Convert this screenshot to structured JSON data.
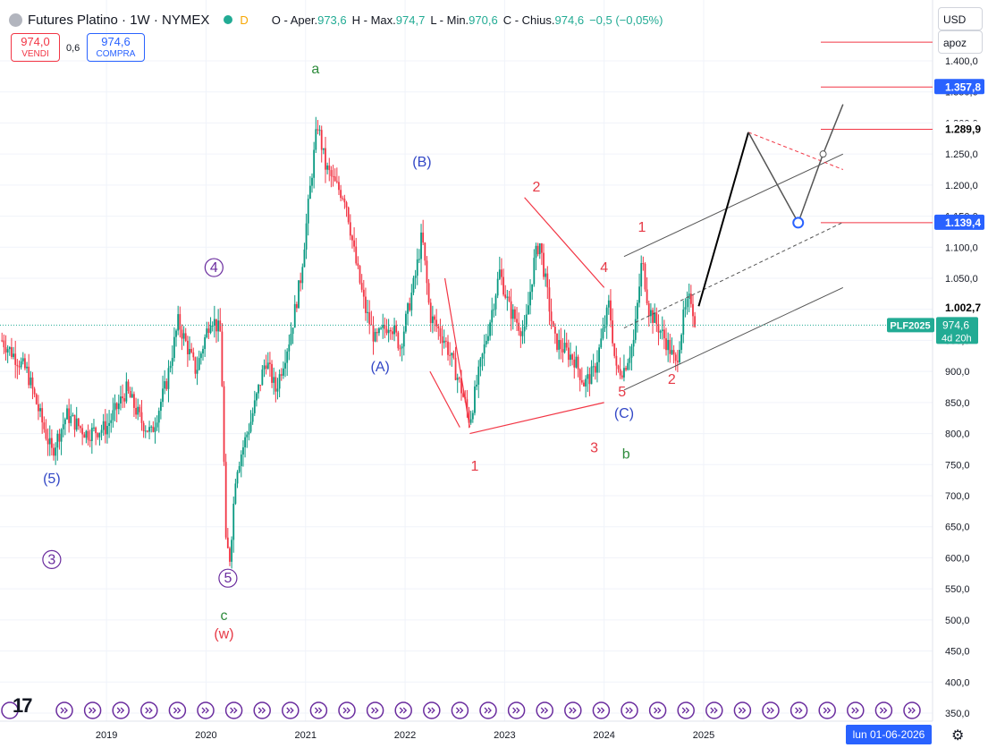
{
  "header": {
    "title": "Futures Platino · 1W · NYMEX",
    "delay_badge": "D",
    "open_label": "O - Aper.",
    "open_value": "973,6",
    "high_label": "H - Max.",
    "high_value": "974,7",
    "low_label": "L - Min.",
    "low_value": "970,6",
    "close_label": "C - Chius.",
    "close_value": "974,6",
    "change_value": "−0,5 (−0,05%)"
  },
  "trade": {
    "sell_price": "974,0",
    "sell_label": "VENDI",
    "spread": "0,6",
    "buy_price": "974,6",
    "buy_label": "COMPRA"
  },
  "controls": {
    "currency": "USD",
    "scale": "apoz"
  },
  "footer": {
    "date_badge": "lun 01-06-2026",
    "logo": "17"
  },
  "chart_data": {
    "type": "candlestick",
    "symbol_tag": "PLF2025",
    "last_price_label": "974,6",
    "countdown": "4d 20h",
    "colors": {
      "up": "#089981",
      "down": "#f23645",
      "wave_red": "#e63946",
      "wave_blue": "#3247c6",
      "wave_green": "#2e8b3c",
      "wave_purple": "#6a2c9e",
      "line_black": "#131722",
      "price_tag_blue": "#2962ff",
      "price_tag_green": "#22ab94"
    },
    "x_axis": {
      "ticks": [
        "2019",
        "2020",
        "2021",
        "2022",
        "2023",
        "2024",
        "2025"
      ],
      "x_positions": [
        2019,
        2020,
        2021,
        2022,
        2023,
        2024,
        2025
      ]
    },
    "y_axis": {
      "range": [
        340,
        1440
      ],
      "ticks": [
        350,
        400,
        450,
        500,
        550,
        600,
        650,
        700,
        750,
        800,
        850,
        900,
        950,
        1000,
        1050,
        1100,
        1150,
        1200,
        1250,
        1300,
        1350,
        1400
      ],
      "tick_labels": [
        "350,0",
        "400,0",
        "450,0",
        "500,0",
        "550,0",
        "600,0",
        "650,0",
        "700,0",
        "750,0",
        "800,0",
        "850,0",
        "900,0",
        "950,0",
        "1.000,0",
        "1.050,0",
        "1.100,0",
        "1.150,0",
        "1.200,0",
        "1.250,0",
        "1.300,0",
        "1.350,0",
        "1.400,0"
      ]
    },
    "price_anchors": [
      {
        "t": 2017.95,
        "p": 950
      },
      {
        "t": 2018.2,
        "p": 900
      },
      {
        "t": 2018.35,
        "p": 820
      },
      {
        "t": 2018.45,
        "p": 770
      },
      {
        "t": 2018.6,
        "p": 830
      },
      {
        "t": 2018.8,
        "p": 800
      },
      {
        "t": 2019.0,
        "p": 810
      },
      {
        "t": 2019.2,
        "p": 870
      },
      {
        "t": 2019.35,
        "p": 820
      },
      {
        "t": 2019.45,
        "p": 800
      },
      {
        "t": 2019.6,
        "p": 880
      },
      {
        "t": 2019.72,
        "p": 980
      },
      {
        "t": 2019.9,
        "p": 900
      },
      {
        "t": 2020.05,
        "p": 990
      },
      {
        "t": 2020.15,
        "p": 960
      },
      {
        "t": 2020.2,
        "p": 620
      },
      {
        "t": 2020.24,
        "p": 600
      },
      {
        "t": 2020.3,
        "p": 740
      },
      {
        "t": 2020.45,
        "p": 820
      },
      {
        "t": 2020.6,
        "p": 920
      },
      {
        "t": 2020.7,
        "p": 870
      },
      {
        "t": 2020.85,
        "p": 960
      },
      {
        "t": 2020.95,
        "p": 1050
      },
      {
        "t": 2021.05,
        "p": 1200
      },
      {
        "t": 2021.12,
        "p": 1300
      },
      {
        "t": 2021.2,
        "p": 1230
      },
      {
        "t": 2021.3,
        "p": 1200
      },
      {
        "t": 2021.4,
        "p": 1180
      },
      {
        "t": 2021.5,
        "p": 1080
      },
      {
        "t": 2021.6,
        "p": 1000
      },
      {
        "t": 2021.7,
        "p": 950
      },
      {
        "t": 2021.85,
        "p": 980
      },
      {
        "t": 2021.95,
        "p": 940
      },
      {
        "t": 2022.1,
        "p": 1050
      },
      {
        "t": 2022.17,
        "p": 1120
      },
      {
        "t": 2022.25,
        "p": 990
      },
      {
        "t": 2022.4,
        "p": 950
      },
      {
        "t": 2022.55,
        "p": 880
      },
      {
        "t": 2022.65,
        "p": 820
      },
      {
        "t": 2022.72,
        "p": 880
      },
      {
        "t": 2022.85,
        "p": 980
      },
      {
        "t": 2022.95,
        "p": 1060
      },
      {
        "t": 2023.05,
        "p": 1000
      },
      {
        "t": 2023.2,
        "p": 960
      },
      {
        "t": 2023.3,
        "p": 1080
      },
      {
        "t": 2023.35,
        "p": 1110
      },
      {
        "t": 2023.5,
        "p": 950
      },
      {
        "t": 2023.7,
        "p": 920
      },
      {
        "t": 2023.8,
        "p": 880
      },
      {
        "t": 2023.9,
        "p": 900
      },
      {
        "t": 2024.0,
        "p": 970
      },
      {
        "t": 2024.05,
        "p": 1010
      },
      {
        "t": 2024.12,
        "p": 900
      },
      {
        "t": 2024.2,
        "p": 905
      },
      {
        "t": 2024.3,
        "p": 950
      },
      {
        "t": 2024.38,
        "p": 1080
      },
      {
        "t": 2024.45,
        "p": 1000
      },
      {
        "t": 2024.55,
        "p": 970
      },
      {
        "t": 2024.65,
        "p": 940
      },
      {
        "t": 2024.72,
        "p": 910
      },
      {
        "t": 2024.8,
        "p": 990
      },
      {
        "t": 2024.87,
        "p": 1020
      },
      {
        "t": 2024.92,
        "p": 975
      }
    ],
    "wave_labels": [
      {
        "text": "(5)",
        "t": 2018.45,
        "p": 720,
        "color": "blue",
        "circle": false
      },
      {
        "text": "3",
        "t": 2018.45,
        "p": 590,
        "color": "purple",
        "circle": true
      },
      {
        "text": "4",
        "t": 2020.08,
        "p": 1060,
        "color": "purple",
        "circle": true
      },
      {
        "text": "5",
        "t": 2020.22,
        "p": 560,
        "color": "purple",
        "circle": true
      },
      {
        "text": "c",
        "t": 2020.18,
        "p": 500,
        "color": "green",
        "circle": false
      },
      {
        "text": "(w)",
        "t": 2020.18,
        "p": 470,
        "color": "red",
        "circle": false
      },
      {
        "text": "a",
        "t": 2021.1,
        "p": 1380,
        "color": "green",
        "circle": false
      },
      {
        "text": "(B)",
        "t": 2022.17,
        "p": 1230,
        "color": "blue",
        "circle": false
      },
      {
        "text": "(A)",
        "t": 2021.75,
        "p": 900,
        "color": "blue",
        "circle": false
      },
      {
        "text": "2",
        "t": 2023.32,
        "p": 1190,
        "color": "red",
        "circle": false
      },
      {
        "text": "4",
        "t": 2024.0,
        "p": 1060,
        "color": "red",
        "circle": false
      },
      {
        "text": "1",
        "t": 2022.7,
        "p": 740,
        "color": "red",
        "circle": false
      },
      {
        "text": "3",
        "t": 2023.9,
        "p": 770,
        "color": "red",
        "circle": false
      },
      {
        "text": "5",
        "t": 2024.18,
        "p": 860,
        "color": "red",
        "circle": false
      },
      {
        "text": "(C)",
        "t": 2024.2,
        "p": 825,
        "color": "blue",
        "circle": false
      },
      {
        "text": "b",
        "t": 2024.22,
        "p": 760,
        "color": "green",
        "circle": false
      },
      {
        "text": "1",
        "t": 2024.38,
        "p": 1125,
        "color": "red",
        "circle": false
      },
      {
        "text": "2",
        "t": 2024.68,
        "p": 880,
        "color": "red",
        "circle": false
      }
    ],
    "red_lines": [
      {
        "t1": 2022.4,
        "p1": 1050,
        "t2": 2022.65,
        "p2": 810
      },
      {
        "t1": 2022.25,
        "p1": 900,
        "t2": 2022.55,
        "p2": 810
      },
      {
        "t1": 2022.65,
        "p1": 800,
        "t2": 2024.0,
        "p2": 850
      },
      {
        "t1": 2023.2,
        "p1": 1180,
        "t2": 2024.0,
        "p2": 1035
      }
    ],
    "channel_lines": [
      {
        "t1": 2024.2,
        "p1": 1085,
        "t2": 2026.4,
        "p2": 1250,
        "style": "solid"
      },
      {
        "t1": 2024.2,
        "p1": 970,
        "t2": 2026.4,
        "p2": 1140,
        "style": "dashed"
      },
      {
        "t1": 2024.2,
        "p1": 870,
        "t2": 2026.4,
        "p2": 1035,
        "style": "solid"
      }
    ],
    "horizontal_levels": [
      {
        "value": 1430,
        "label": ""
      },
      {
        "value": 1357.8,
        "label": "1.357,8"
      },
      {
        "value": 1289.9,
        "label": "1.289,9"
      },
      {
        "value": 1139.4,
        "label": "1.139,4"
      }
    ],
    "projection_path": [
      {
        "t": 2024.95,
        "p": 1005
      },
      {
        "t": 2025.45,
        "p": 1285
      },
      {
        "t": 2025.95,
        "p": 1139.4
      },
      {
        "t": 2026.2,
        "p": 1250
      },
      {
        "t": 2026.4,
        "p": 1330
      }
    ],
    "extra_price_tags": [
      {
        "label": "1.002,7",
        "value": 1002.7
      }
    ]
  }
}
